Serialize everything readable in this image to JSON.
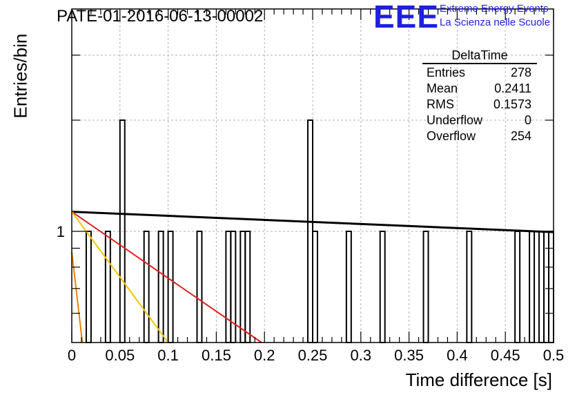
{
  "header": {
    "run_title": "PATE-01-2016-06-13-00002",
    "logo_text": "EEE",
    "logo_line1": "Extreme Energy Events",
    "logo_line2": "La Scienza nelle Scuole"
  },
  "stats_box": {
    "title": "DeltaTime",
    "rows": [
      {
        "label": "Entries",
        "value": "278"
      },
      {
        "label": "Mean",
        "value": "0.2411"
      },
      {
        "label": "RMS",
        "value": "0.1573"
      },
      {
        "label": "Underflow",
        "value": "0"
      },
      {
        "label": "Overflow",
        "value": "254"
      }
    ]
  },
  "colors": {
    "histogram": "#000000",
    "grid": "#b0b0b0",
    "fit_black": "#000000",
    "fit_red": "#e02020",
    "fit_yellow": "#f5c400",
    "fit_orange": "#f08000",
    "logo": "#1f1fe0"
  },
  "chart_data": {
    "type": "histogram",
    "title": "PATE-01-2016-06-13-00002",
    "xlabel": "Time difference [s]",
    "ylabel": "Entries/bin",
    "xlim": [
      0,
      0.5
    ],
    "ylim": [
      0.5,
      4
    ],
    "yscale": "log",
    "grid": true,
    "x_tick_labels": [
      "0",
      "0.05",
      "0.1",
      "0.15",
      "0.2",
      "0.25",
      "0.3",
      "0.35",
      "0.4",
      "0.45",
      "0.5"
    ],
    "y_tick_labels": [
      "1"
    ],
    "bin_width": 0.005,
    "bins": [
      {
        "x": 0.015,
        "count": 1
      },
      {
        "x": 0.035,
        "count": 1
      },
      {
        "x": 0.05,
        "count": 2
      },
      {
        "x": 0.075,
        "count": 1
      },
      {
        "x": 0.09,
        "count": 1
      },
      {
        "x": 0.1,
        "count": 1
      },
      {
        "x": 0.13,
        "count": 1
      },
      {
        "x": 0.16,
        "count": 1
      },
      {
        "x": 0.165,
        "count": 1
      },
      {
        "x": 0.175,
        "count": 1
      },
      {
        "x": 0.18,
        "count": 1
      },
      {
        "x": 0.245,
        "count": 2
      },
      {
        "x": 0.25,
        "count": 1
      },
      {
        "x": 0.285,
        "count": 1
      },
      {
        "x": 0.32,
        "count": 1
      },
      {
        "x": 0.365,
        "count": 1
      },
      {
        "x": 0.41,
        "count": 1
      },
      {
        "x": 0.46,
        "count": 1
      },
      {
        "x": 0.475,
        "count": 1
      },
      {
        "x": 0.485,
        "count": 1
      },
      {
        "x": 0.49,
        "count": 1
      },
      {
        "x": 0.495,
        "count": 1
      }
    ],
    "fit_lines": [
      {
        "color": "black",
        "x": [
          0,
          0.5
        ],
        "y": [
          1.13,
          0.995
        ]
      },
      {
        "color": "red",
        "x": [
          0,
          0.197
        ],
        "y": [
          1.13,
          0.5
        ]
      },
      {
        "color": "yellow",
        "x": [
          0,
          0.1
        ],
        "y": [
          1.13,
          0.5
        ]
      },
      {
        "color": "orange",
        "x": [
          0,
          0.011
        ],
        "y": [
          0.88,
          0.5
        ]
      }
    ]
  }
}
